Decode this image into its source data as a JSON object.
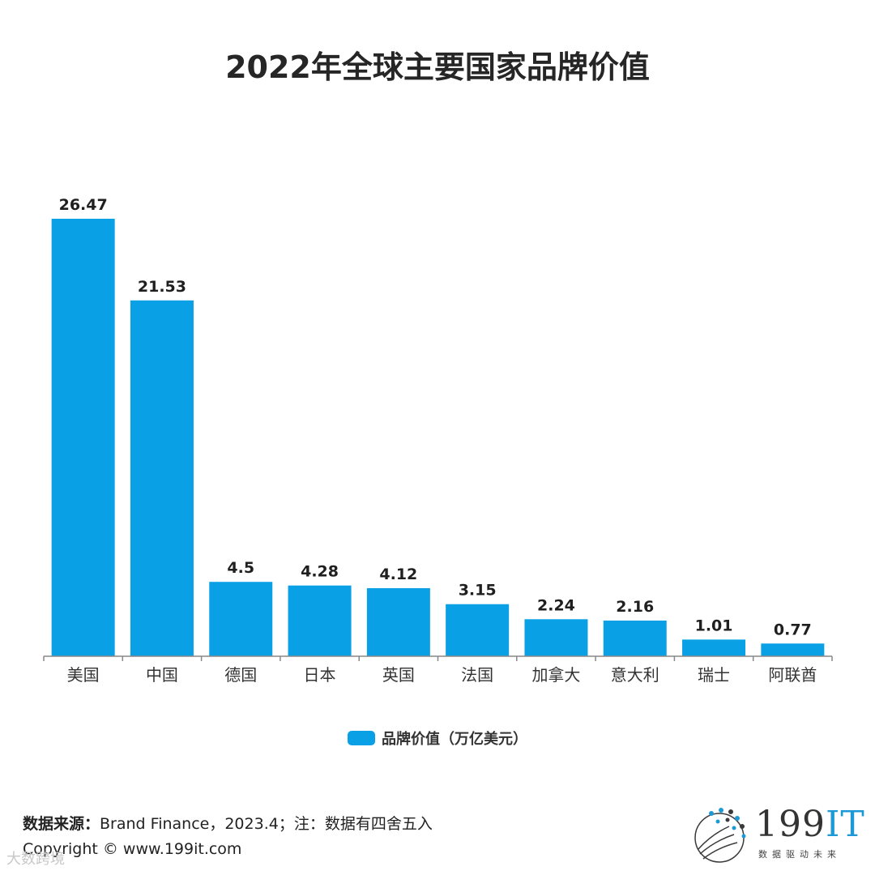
{
  "title": "2022年全球主要国家品牌价值",
  "chart_data": {
    "type": "bar",
    "categories": [
      "美国",
      "中国",
      "德国",
      "日本",
      "英国",
      "法国",
      "加拿大",
      "意大利",
      "瑞士",
      "阿联酋"
    ],
    "series": [
      {
        "name": "品牌价值（万亿美元）",
        "values": [
          26.47,
          21.53,
          4.5,
          4.28,
          4.12,
          3.15,
          2.24,
          2.16,
          1.01,
          0.77
        ]
      }
    ],
    "value_labels": [
      "26.47",
      "21.53",
      "4.5",
      "4.28",
      "4.12",
      "3.15",
      "2.24",
      "2.16",
      "1.01",
      "0.77"
    ],
    "ylim": [
      0,
      26.47
    ],
    "grid": false,
    "legend_position": "bottom",
    "bar_color": "#0aa0e6"
  },
  "footer": {
    "source_label": "数据来源：",
    "source_text": "Brand Finance，2023.4；注：数据有四舍五入",
    "copyright": "Copyright © www.199it.com"
  },
  "logo": {
    "number": "199",
    "it": "IT",
    "tagline": "数据驱动未来"
  },
  "watermark": "大数跨境"
}
